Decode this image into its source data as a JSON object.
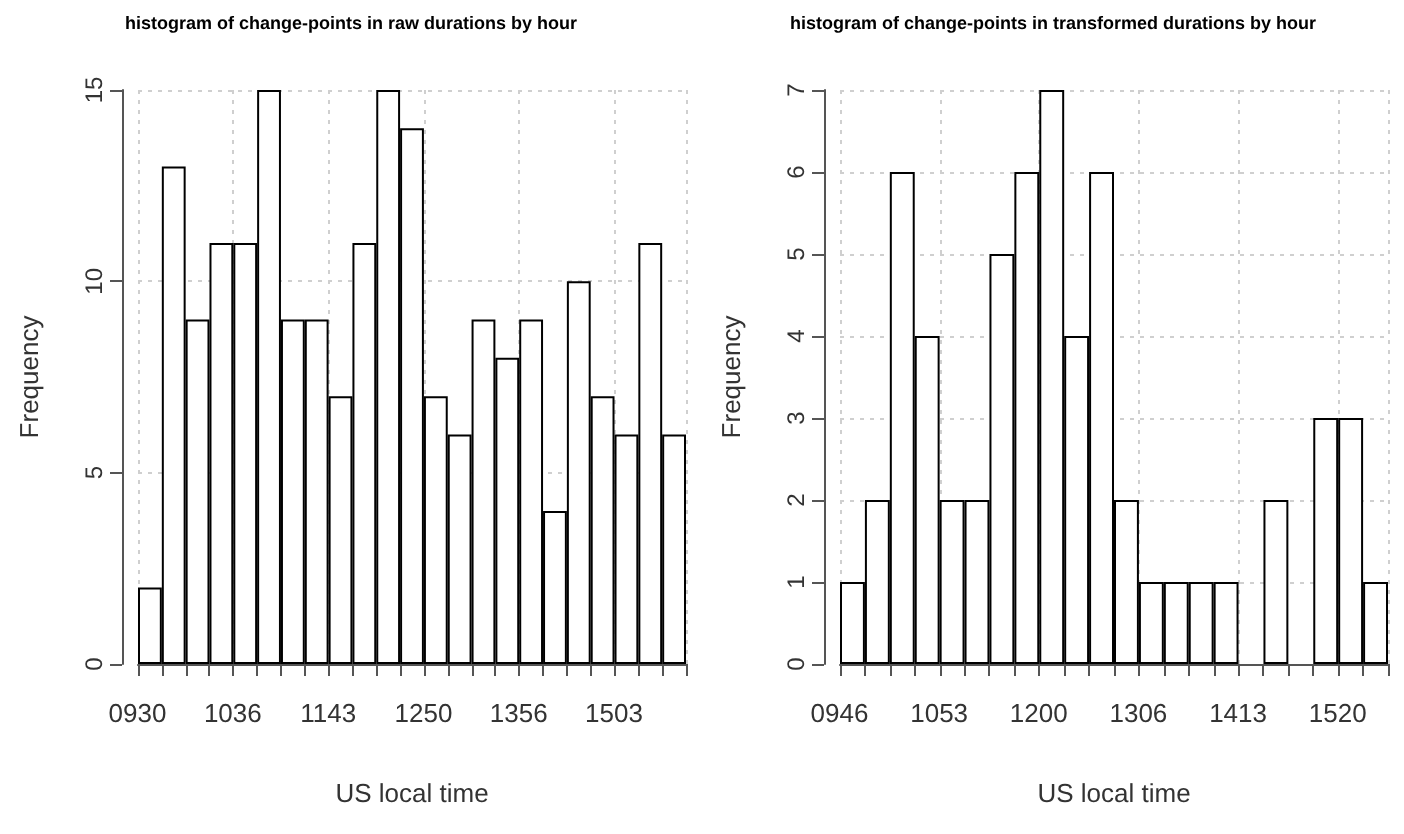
{
  "chart_data": [
    {
      "type": "bar",
      "title": "histogram of change-points in raw durations by hour",
      "xlabel": "US local time",
      "ylabel": "Frequency",
      "categories": [
        "0930",
        null,
        null,
        null,
        "1036",
        null,
        null,
        null,
        "1143",
        null,
        null,
        null,
        "1250",
        null,
        null,
        null,
        "1356",
        null,
        null,
        null,
        "1503",
        null,
        null
      ],
      "values": [
        2,
        13,
        9,
        11,
        11,
        15,
        9,
        9,
        7,
        11,
        15,
        14,
        7,
        6,
        9,
        8,
        9,
        4,
        10,
        7,
        6,
        11,
        6
      ],
      "color": "#ffffff",
      "ylim": [
        0,
        15
      ],
      "yticks": [
        0,
        5,
        10,
        15
      ],
      "grid": true
    },
    {
      "type": "bar",
      "title": "histogram of change-points in transformed durations by hour",
      "xlabel": "US local time",
      "ylabel": "Frequency",
      "categories": [
        "0946",
        null,
        null,
        null,
        "1053",
        null,
        null,
        null,
        "1200",
        null,
        null,
        null,
        "1306",
        null,
        null,
        null,
        "1413",
        null,
        null,
        null,
        "1520",
        null
      ],
      "values": [
        1,
        2,
        6,
        4,
        2,
        2,
        5,
        6,
        7,
        4,
        6,
        2,
        1,
        1,
        1,
        1,
        0,
        2,
        0,
        3,
        3,
        1
      ],
      "color": "#ffffff",
      "ylim": [
        0,
        7
      ],
      "yticks": [
        0,
        1,
        2,
        3,
        4,
        5,
        6,
        7
      ],
      "grid": true
    }
  ]
}
